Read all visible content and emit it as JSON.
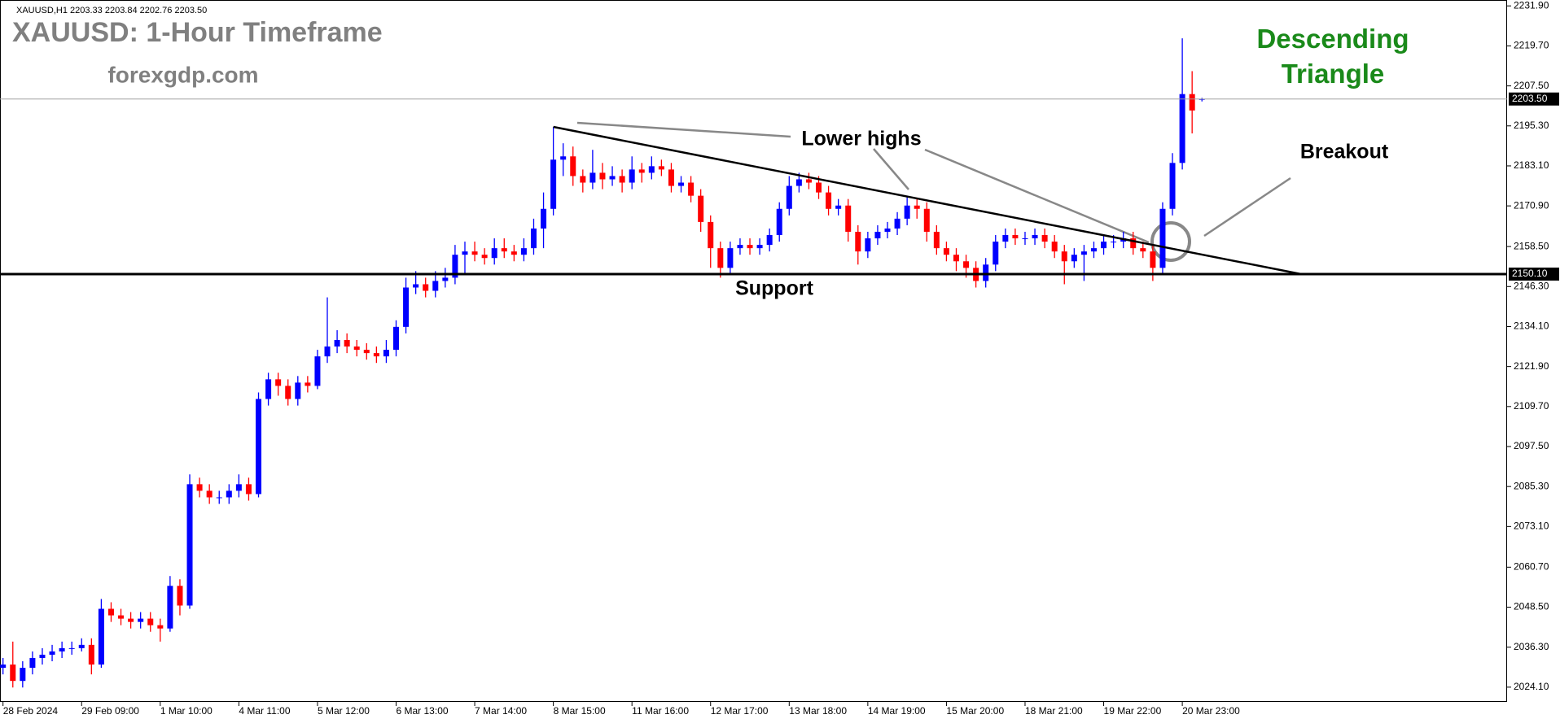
{
  "chart_data": {
    "type": "candlestick",
    "symbol_info": "XAUUSD,H1  2203.33 2203.84 2202.76 2203.50",
    "title": "XAUUSD: 1-Hour Timeframe",
    "subtitle": "forexgdp.com",
    "pattern_label": "Descending Triangle",
    "annotations": {
      "lower_highs": "Lower highs",
      "support": "Support",
      "breakout": "Breakout"
    },
    "categories": [
      "28 Feb 2024",
      null,
      null,
      null,
      null,
      null,
      null,
      null,
      "29 Feb 09:00",
      null,
      null,
      null,
      null,
      null,
      null,
      null,
      "1 Mar 10:00",
      null,
      null,
      null,
      null,
      null,
      null,
      null,
      "4 Mar 11:00",
      null,
      null,
      null,
      null,
      null,
      null,
      null,
      "5 Mar 12:00",
      null,
      null,
      null,
      null,
      null,
      null,
      null,
      "6 Mar 13:00",
      null,
      null,
      null,
      null,
      null,
      null,
      null,
      "7 Mar 14:00",
      null,
      null,
      null,
      null,
      null,
      null,
      null,
      "8 Mar 15:00",
      null,
      null,
      null,
      null,
      null,
      null,
      null,
      "11 Mar 16:00",
      null,
      null,
      null,
      null,
      null,
      null,
      null,
      "12 Mar 17:00",
      null,
      null,
      null,
      null,
      null,
      null,
      null,
      "13 Mar 18:00",
      null,
      null,
      null,
      null,
      null,
      null,
      null,
      "14 Mar 19:00",
      null,
      null,
      null,
      null,
      null,
      null,
      null,
      "15 Mar 20:00",
      null,
      null,
      null,
      null,
      null,
      null,
      null,
      "18 Mar 21:00",
      null,
      null,
      null,
      null,
      null,
      null,
      null,
      "19 Mar 22:00",
      null,
      null,
      null,
      null,
      null,
      null,
      null,
      "20 Mar 23:00",
      null,
      null
    ],
    "open": [
      2030,
      2031,
      2026,
      2030,
      2033,
      2034,
      2035,
      2036,
      2036,
      2037,
      2031,
      2048,
      2046,
      2045,
      2044,
      2045,
      2043,
      2042,
      2055,
      2049,
      2086,
      2084,
      2082,
      2082,
      2084,
      2086,
      2083,
      2112,
      2118,
      2116,
      2112,
      2117,
      2116,
      2125,
      2128,
      2130,
      2128,
      2127,
      2126,
      2125,
      2127,
      2134,
      2146,
      2147,
      2145,
      2148,
      2149,
      2156,
      2157,
      2156,
      2155,
      2158,
      2157,
      2156,
      2158,
      2164,
      2170,
      2185,
      2186,
      2180,
      2178,
      2181,
      2179,
      2180,
      2178,
      2182,
      2181,
      2183,
      2182,
      2177,
      2178,
      2174,
      2166,
      2158,
      2152,
      2158,
      2159,
      2158,
      2159,
      2162,
      2170,
      2177,
      2179,
      2178,
      2175,
      2170,
      2171,
      2163,
      2157,
      2161,
      2163,
      2164,
      2167,
      2171,
      2170,
      2163,
      2158,
      2156,
      2154,
      2152,
      2148,
      2153,
      2160,
      2162,
      2161,
      2161,
      2162,
      2160,
      2157,
      2154,
      2156,
      2157,
      2158,
      2160,
      2160,
      2161,
      2158,
      2157,
      2152,
      2170,
      2184,
      2205,
      2203.33
    ],
    "high": [
      2033,
      2038,
      2032,
      2035,
      2036,
      2037,
      2038,
      2038,
      2039,
      2039,
      2051,
      2050,
      2048,
      2047,
      2047,
      2047,
      2045,
      2058,
      2057,
      2089,
      2088,
      2086,
      2084,
      2086,
      2089,
      2088,
      2114,
      2120,
      2120,
      2118,
      2119,
      2119,
      2127,
      2143,
      2133,
      2132,
      2130,
      2129,
      2128,
      2130,
      2136,
      2149,
      2151,
      2149,
      2151,
      2152,
      2159,
      2160,
      2160,
      2158,
      2161,
      2161,
      2159,
      2161,
      2167,
      2175,
      2195,
      2190,
      2189,
      2182,
      2188,
      2184,
      2183,
      2182,
      2186,
      2184,
      2186,
      2185,
      2184,
      2180,
      2180,
      2176,
      2168,
      2160,
      2160,
      2161,
      2161,
      2161,
      2164,
      2172,
      2180,
      2181,
      2181,
      2180,
      2177,
      2173,
      2173,
      2165,
      2163,
      2165,
      2166,
      2169,
      2174,
      2173,
      2172,
      2165,
      2160,
      2158,
      2156,
      2154,
      2155,
      2162,
      2164,
      2164,
      2163,
      2164,
      2164,
      2162,
      2159,
      2158,
      2159,
      2160,
      2162,
      2162,
      2163,
      2163,
      2160,
      2159,
      2172,
      2187,
      2222,
      2212,
      2203.84
    ],
    "low": [
      2028,
      2024,
      2024,
      2028,
      2031,
      2032,
      2033,
      2034,
      2035,
      2028,
      2030,
      2044,
      2043,
      2042,
      2042,
      2041,
      2038,
      2041,
      2046,
      2048,
      2082,
      2080,
      2080,
      2080,
      2082,
      2081,
      2082,
      2110,
      2113,
      2110,
      2110,
      2114,
      2115,
      2123,
      2126,
      2126,
      2125,
      2124,
      2123,
      2123,
      2125,
      2132,
      2144,
      2143,
      2143,
      2146,
      2147,
      2150,
      2154,
      2153,
      2153,
      2155,
      2154,
      2154,
      2156,
      2158,
      2168,
      2180,
      2177,
      2175,
      2176,
      2176,
      2177,
      2175,
      2176,
      2178,
      2179,
      2180,
      2175,
      2175,
      2172,
      2163,
      2152,
      2149,
      2150,
      2156,
      2156,
      2156,
      2157,
      2160,
      2168,
      2175,
      2176,
      2173,
      2168,
      2168,
      2160,
      2153,
      2155,
      2159,
      2161,
      2162,
      2165,
      2167,
      2160,
      2156,
      2154,
      2151,
      2149,
      2146,
      2146,
      2151,
      2158,
      2159,
      2159,
      2159,
      2158,
      2155,
      2147,
      2152,
      2148,
      2155,
      2156,
      2158,
      2158,
      2156,
      2155,
      2148,
      2150,
      2168,
      2182,
      2193,
      2202.76
    ],
    "close": [
      2031,
      2026,
      2030,
      2033,
      2034,
      2035,
      2036,
      2036,
      2037,
      2031,
      2048,
      2046,
      2045,
      2044,
      2045,
      2043,
      2042,
      2055,
      2049,
      2086,
      2084,
      2082,
      2082,
      2084,
      2086,
      2083,
      2112,
      2118,
      2116,
      2112,
      2117,
      2116,
      2125,
      2128,
      2130,
      2128,
      2127,
      2126,
      2125,
      2127,
      2134,
      2146,
      2147,
      2145,
      2148,
      2149,
      2156,
      2157,
      2156,
      2155,
      2158,
      2157,
      2156,
      2158,
      2164,
      2170,
      2185,
      2186,
      2180,
      2178,
      2181,
      2179,
      2180,
      2178,
      2182,
      2181,
      2183,
      2182,
      2177,
      2178,
      2174,
      2166,
      2158,
      2152,
      2158,
      2159,
      2158,
      2159,
      2162,
      2170,
      2177,
      2179,
      2178,
      2175,
      2170,
      2171,
      2163,
      2157,
      2161,
      2163,
      2164,
      2167,
      2171,
      2170,
      2163,
      2158,
      2156,
      2154,
      2152,
      2148,
      2153,
      2160,
      2162,
      2161,
      2161,
      2162,
      2160,
      2157,
      2154,
      2156,
      2157,
      2158,
      2160,
      2160,
      2161,
      2158,
      2157,
      2152,
      2170,
      2184,
      2205,
      2200,
      2203.5
    ],
    "up_color": "#0000ff",
    "down_color": "#ff0000",
    "ylim": [
      2019.6,
      2233.7
    ],
    "yticks": [
      {
        "value": 2231.9,
        "label": "2231.90"
      },
      {
        "value": 2219.7,
        "label": "2219.70"
      },
      {
        "value": 2207.5,
        "label": "2207.50"
      },
      {
        "value": 2195.3,
        "label": "2195.30"
      },
      {
        "value": 2183.1,
        "label": "2183.10"
      },
      {
        "value": 2170.9,
        "label": "2170.90"
      },
      {
        "value": 2158.5,
        "label": "2158.50"
      },
      {
        "value": 2146.3,
        "label": "2146.30"
      },
      {
        "value": 2134.1,
        "label": "2134.10"
      },
      {
        "value": 2121.9,
        "label": "2121.90"
      },
      {
        "value": 2109.7,
        "label": "2109.70"
      },
      {
        "value": 2097.5,
        "label": "2097.50"
      },
      {
        "value": 2085.3,
        "label": "2085.30"
      },
      {
        "value": 2073.1,
        "label": "2073.10"
      },
      {
        "value": 2060.7,
        "label": "2060.70"
      },
      {
        "value": 2048.5,
        "label": "2048.50"
      },
      {
        "value": 2036.3,
        "label": "2036.30"
      },
      {
        "value": 2024.1,
        "label": "2024.10"
      }
    ],
    "support_level": {
      "value": 2150.1,
      "label": "2150.10"
    },
    "current_price": {
      "value": 2203.5,
      "label": "2203.50"
    }
  }
}
